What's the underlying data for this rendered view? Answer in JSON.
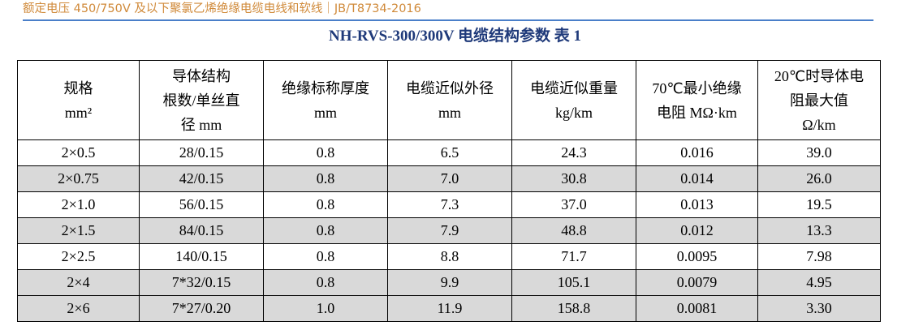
{
  "header": {
    "text": "额定电压 450/750V 及以下聚氯乙烯绝缘电缆电线和软线｜JB/T8734-2016"
  },
  "table": {
    "title": "NH-RVS-300/300V 电缆结构参数  表 1",
    "columns": [
      {
        "lines": [
          "规格",
          "mm²"
        ]
      },
      {
        "lines": [
          "导体结构",
          "根数/单丝直",
          "径 mm"
        ]
      },
      {
        "lines": [
          "绝缘标称厚度",
          "mm"
        ]
      },
      {
        "lines": [
          "电缆近似外径",
          "mm"
        ]
      },
      {
        "lines": [
          "电缆近似重量",
          "kg/km"
        ]
      },
      {
        "lines": [
          "70℃最小绝缘",
          "电阻 MΩ·km"
        ]
      },
      {
        "lines": [
          "20℃时导体电",
          "阻最大值",
          "Ω/km"
        ]
      }
    ],
    "rows": [
      [
        "2×0.5",
        "28/0.15",
        "0.8",
        "6.5",
        "24.3",
        "0.016",
        "39.0"
      ],
      [
        "2×0.75",
        "42/0.15",
        "0.8",
        "7.0",
        "30.8",
        "0.014",
        "26.0"
      ],
      [
        "2×1.0",
        "56/0.15",
        "0.8",
        "7.3",
        "37.0",
        "0.013",
        "19.5"
      ],
      [
        "2×1.5",
        "84/0.15",
        "0.8",
        "7.9",
        "48.8",
        "0.012",
        "13.3"
      ],
      [
        "2×2.5",
        "140/0.15",
        "0.8",
        "8.8",
        "71.7",
        "0.0095",
        "7.98"
      ],
      [
        "2×4",
        "7*32/0.15",
        "0.8",
        "9.9",
        "105.1",
        "0.0079",
        "4.95"
      ],
      [
        "2×6",
        "7*27/0.20",
        "1.0",
        "11.9",
        "158.8",
        "0.0081",
        "3.30"
      ]
    ]
  },
  "colors": {
    "header_text": "#d08a3a",
    "rule": "#4a7fc9",
    "title": "#1f3a7a",
    "row_shade": "#d9d9d9"
  }
}
